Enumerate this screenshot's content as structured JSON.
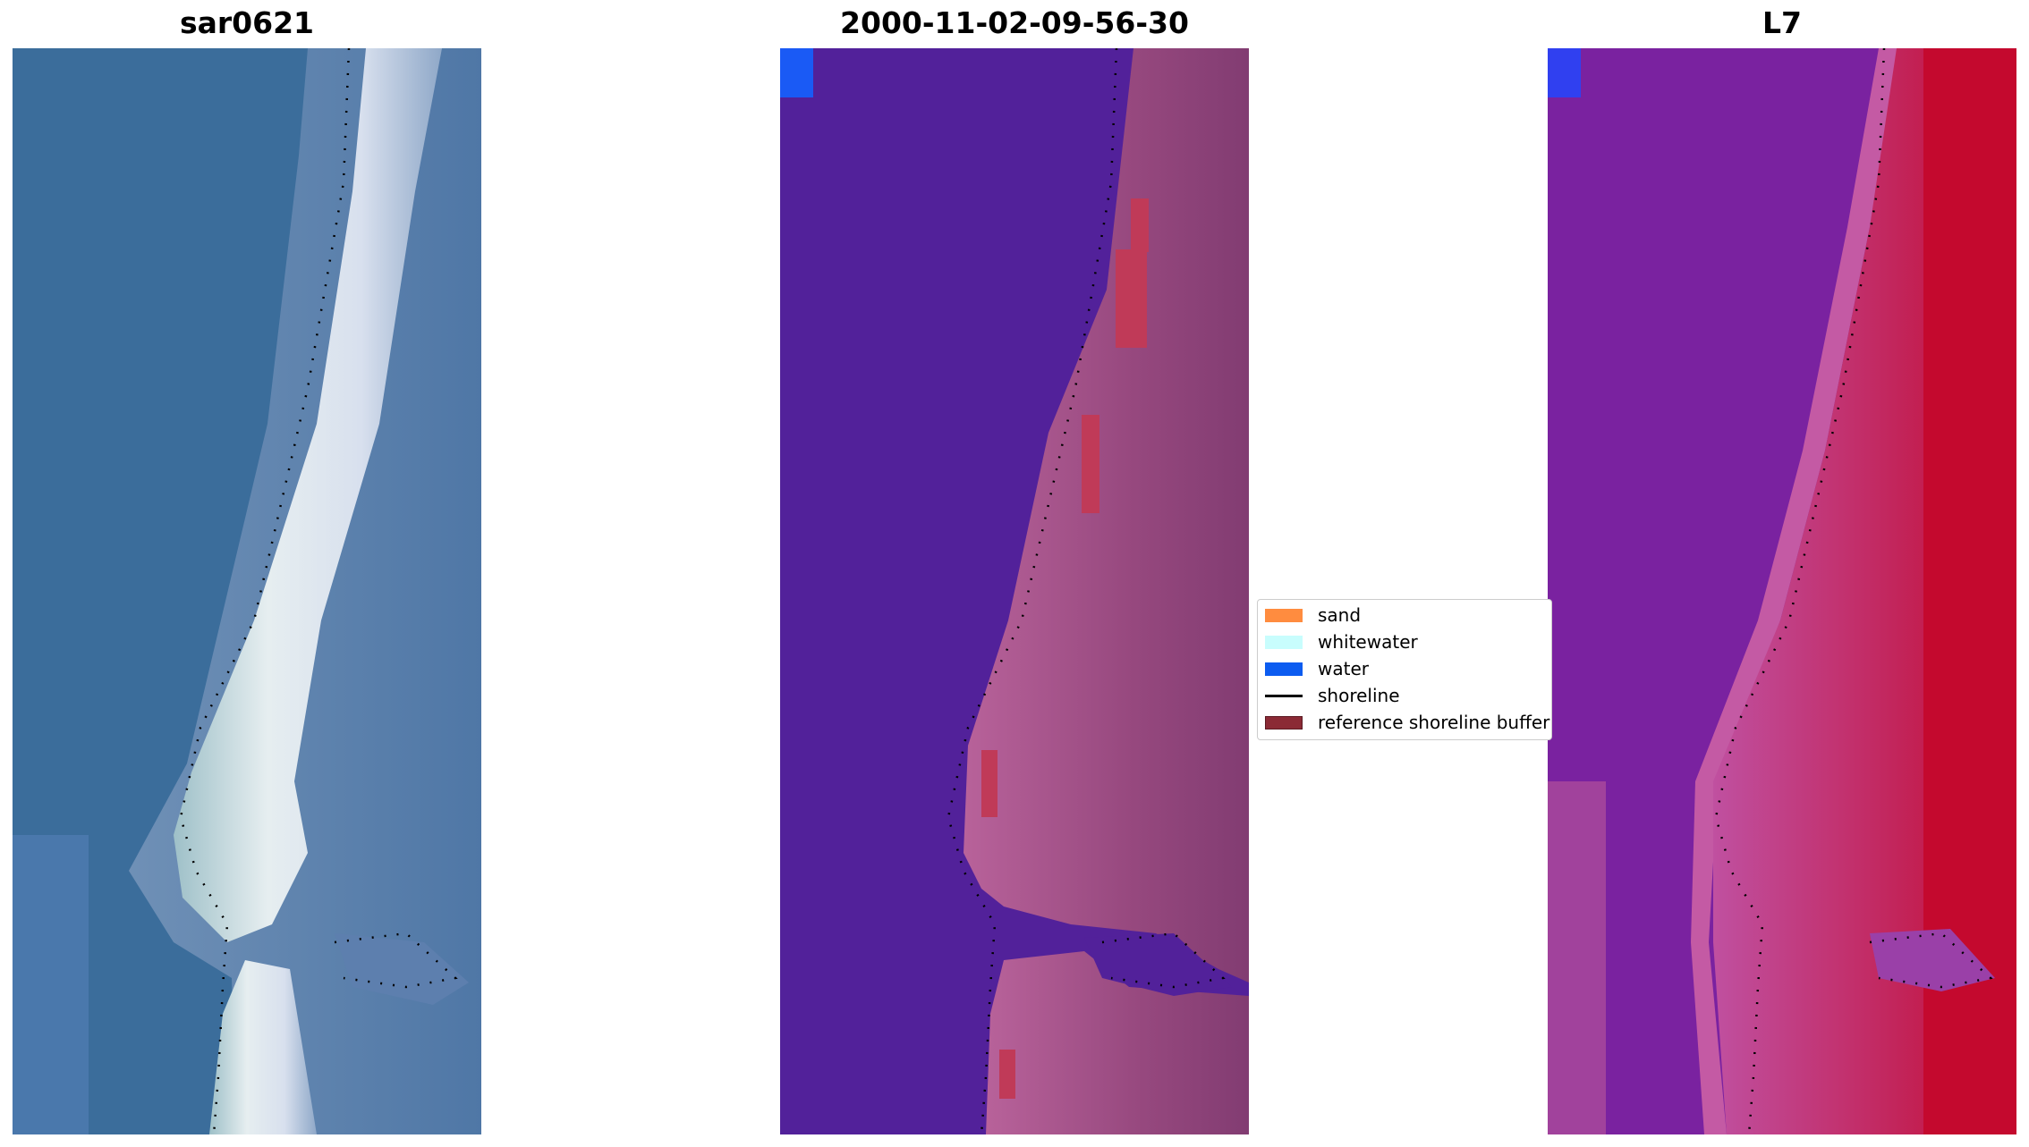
{
  "panels": [
    {
      "title": "sar0621"
    },
    {
      "title": "2000-11-02-09-56-30"
    },
    {
      "title": "L7"
    }
  ],
  "legend": {
    "items": [
      {
        "label": "sand",
        "color": "#ff8c3f",
        "kind": "patch"
      },
      {
        "label": "whitewater",
        "color": "#c8fdfd",
        "kind": "patch"
      },
      {
        "label": "water",
        "color": "#0c5cf0",
        "kind": "patch"
      },
      {
        "label": "shoreline",
        "color": "#000000",
        "kind": "line"
      },
      {
        "label": "reference shoreline buffer",
        "color": "#8b2a35",
        "kind": "patch"
      }
    ]
  },
  "colors": {
    "rgb_water": "#3b6d9b",
    "rgb_beach": "#e8ecf0",
    "class_water": "#52219a",
    "class_land": "#8a4278",
    "class_land_bright": "#b8629a",
    "class_buffer": "#c03a58",
    "class_blue_corner": "#1a5af5",
    "ndwi_purple": "#7a22a0",
    "ndwi_red": "#c4092e"
  }
}
